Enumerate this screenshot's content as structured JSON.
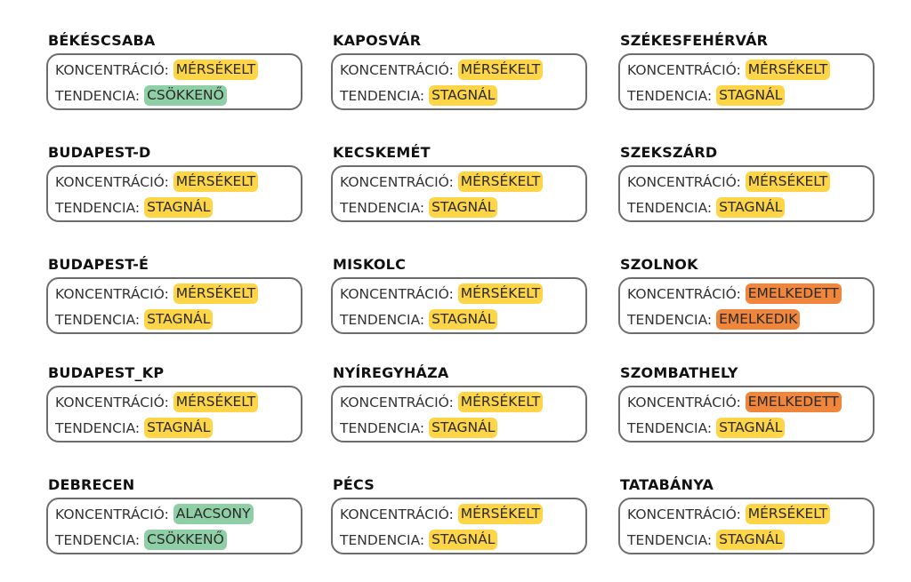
{
  "labels": {
    "concentration": "KONCENTRÁCIÓ:",
    "trend": "TENDENCIA:"
  },
  "status_colors": {
    "MÉRSÉKELT": "#fdd547",
    "STAGNÁL": "#fdd547",
    "ALACSONY": "#8fcfa6",
    "CSÖKKENŐ": "#8fcfa6",
    "EMELKEDETT": "#f0863b",
    "EMELKEDIK": "#f0863b"
  },
  "cities": [
    {
      "name": "BÉKÉSCSABA",
      "concentration": "MÉRSÉKELT",
      "trend": "CSÖKKENŐ"
    },
    {
      "name": "BUDAPEST-D",
      "concentration": "MÉRSÉKELT",
      "trend": "STAGNÁL"
    },
    {
      "name": "BUDAPEST-É",
      "concentration": "MÉRSÉKELT",
      "trend": "STAGNÁL"
    },
    {
      "name": "BUDAPEST_KP",
      "concentration": "MÉRSÉKELT",
      "trend": "STAGNÁL"
    },
    {
      "name": "DEBRECEN",
      "concentration": "ALACSONY",
      "trend": "CSÖKKENŐ"
    },
    {
      "name": "KAPOSVÁR",
      "concentration": "MÉRSÉKELT",
      "trend": "STAGNÁL"
    },
    {
      "name": "KECSKEMÉT",
      "concentration": "MÉRSÉKELT",
      "trend": "STAGNÁL"
    },
    {
      "name": "MISKOLC",
      "concentration": "MÉRSÉKELT",
      "trend": "STAGNÁL"
    },
    {
      "name": "NYÍREGYHÁZA",
      "concentration": "MÉRSÉKELT",
      "trend": "STAGNÁL"
    },
    {
      "name": "PÉCS",
      "concentration": "MÉRSÉKELT",
      "trend": "STAGNÁL"
    },
    {
      "name": "SZÉKESFEHÉRVÁR",
      "concentration": "MÉRSÉKELT",
      "trend": "STAGNÁL"
    },
    {
      "name": "SZEKSZÁRD",
      "concentration": "MÉRSÉKELT",
      "trend": "STAGNÁL"
    },
    {
      "name": "SZOLNOK",
      "concentration": "EMELKEDETT",
      "trend": "EMELKEDIK"
    },
    {
      "name": "SZOMBATHELY",
      "concentration": "EMELKEDETT",
      "trend": "STAGNÁL"
    },
    {
      "name": "TATABÁNYA",
      "concentration": "MÉRSÉKELT",
      "trend": "STAGNÁL"
    }
  ]
}
